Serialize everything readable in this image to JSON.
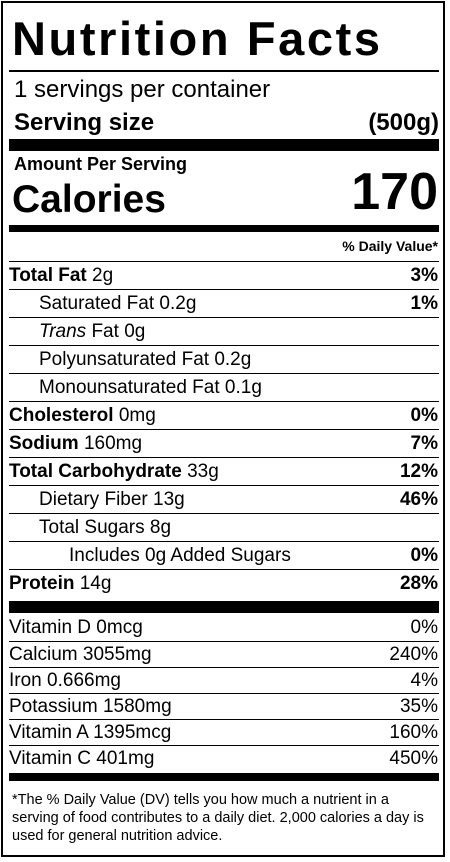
{
  "header": {
    "title": "Nutrition Facts",
    "servings_per_container": "1 servings per container",
    "serving_size_label": "Serving size",
    "serving_size_value": "(500g)"
  },
  "calories": {
    "amount_per_serving": "Amount Per Serving",
    "label": "Calories",
    "value": "170"
  },
  "daily_value_header": "% Daily Value*",
  "nutrients": [
    {
      "name": "Total Fat",
      "amount": "2g",
      "dv": "3%"
    },
    {
      "name": "Saturated Fat",
      "amount": "0.2g",
      "dv": "1%"
    },
    {
      "name_italic": "Trans",
      "name": "Fat",
      "amount": "0g",
      "dv": ""
    },
    {
      "name": "Polyunsaturated Fat",
      "amount": "0.2g",
      "dv": ""
    },
    {
      "name": "Monounsaturated Fat",
      "amount": "0.1g",
      "dv": ""
    },
    {
      "name": "Cholesterol",
      "amount": "0mg",
      "dv": "0%"
    },
    {
      "name": "Sodium",
      "amount": "160mg",
      "dv": "7%"
    },
    {
      "name": "Total Carbohydrate",
      "amount": "33g",
      "dv": "12%"
    },
    {
      "name": "Dietary Fiber",
      "amount": "13g",
      "dv": "46%"
    },
    {
      "name": "Total Sugars",
      "amount": "8g",
      "dv": ""
    },
    {
      "name": "Includes 0g Added Sugars",
      "amount": "",
      "dv": "0%"
    },
    {
      "name": "Protein",
      "amount": "14g",
      "dv": "28%"
    }
  ],
  "vitamins": [
    {
      "name": "Vitamin D",
      "amount": "0mcg",
      "dv": "0%"
    },
    {
      "name": "Calcium",
      "amount": "3055mg",
      "dv": "240%"
    },
    {
      "name": "Iron",
      "amount": "0.666mg",
      "dv": "4%"
    },
    {
      "name": "Potassium",
      "amount": "1580mg",
      "dv": "35%"
    },
    {
      "name": "Vitamin A",
      "amount": "1395mcg",
      "dv": "160%"
    },
    {
      "name": "Vitamin C",
      "amount": "401mg",
      "dv": "450%"
    }
  ],
  "footnote": "*The % Daily Value (DV) tells you how much a nutrient in a serving of food contributes to a daily diet. 2,000 calories a day is used for general nutrition advice."
}
